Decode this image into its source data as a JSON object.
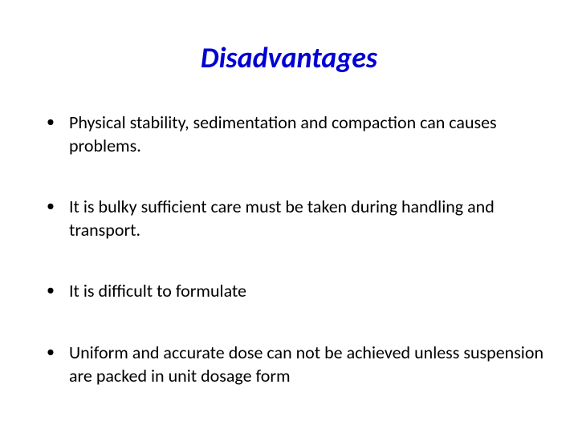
{
  "slide": {
    "title": "Disadvantages",
    "title_color": "#0000d4",
    "title_fontsize": 36,
    "title_fontweight": "bold",
    "title_fontstyle": "italic",
    "bullet_color": "#000000",
    "body_color": "#000000",
    "body_fontsize": 22,
    "background_color": "#ffffff",
    "bullets": [
      "Physical stability, sedimentation and compaction can causes problems.",
      "It is bulky sufficient care must be taken during handling and transport.",
      "It is difficult to formulate",
      "Uniform and accurate dose can not be achieved unless suspension are packed in unit dosage form"
    ]
  }
}
